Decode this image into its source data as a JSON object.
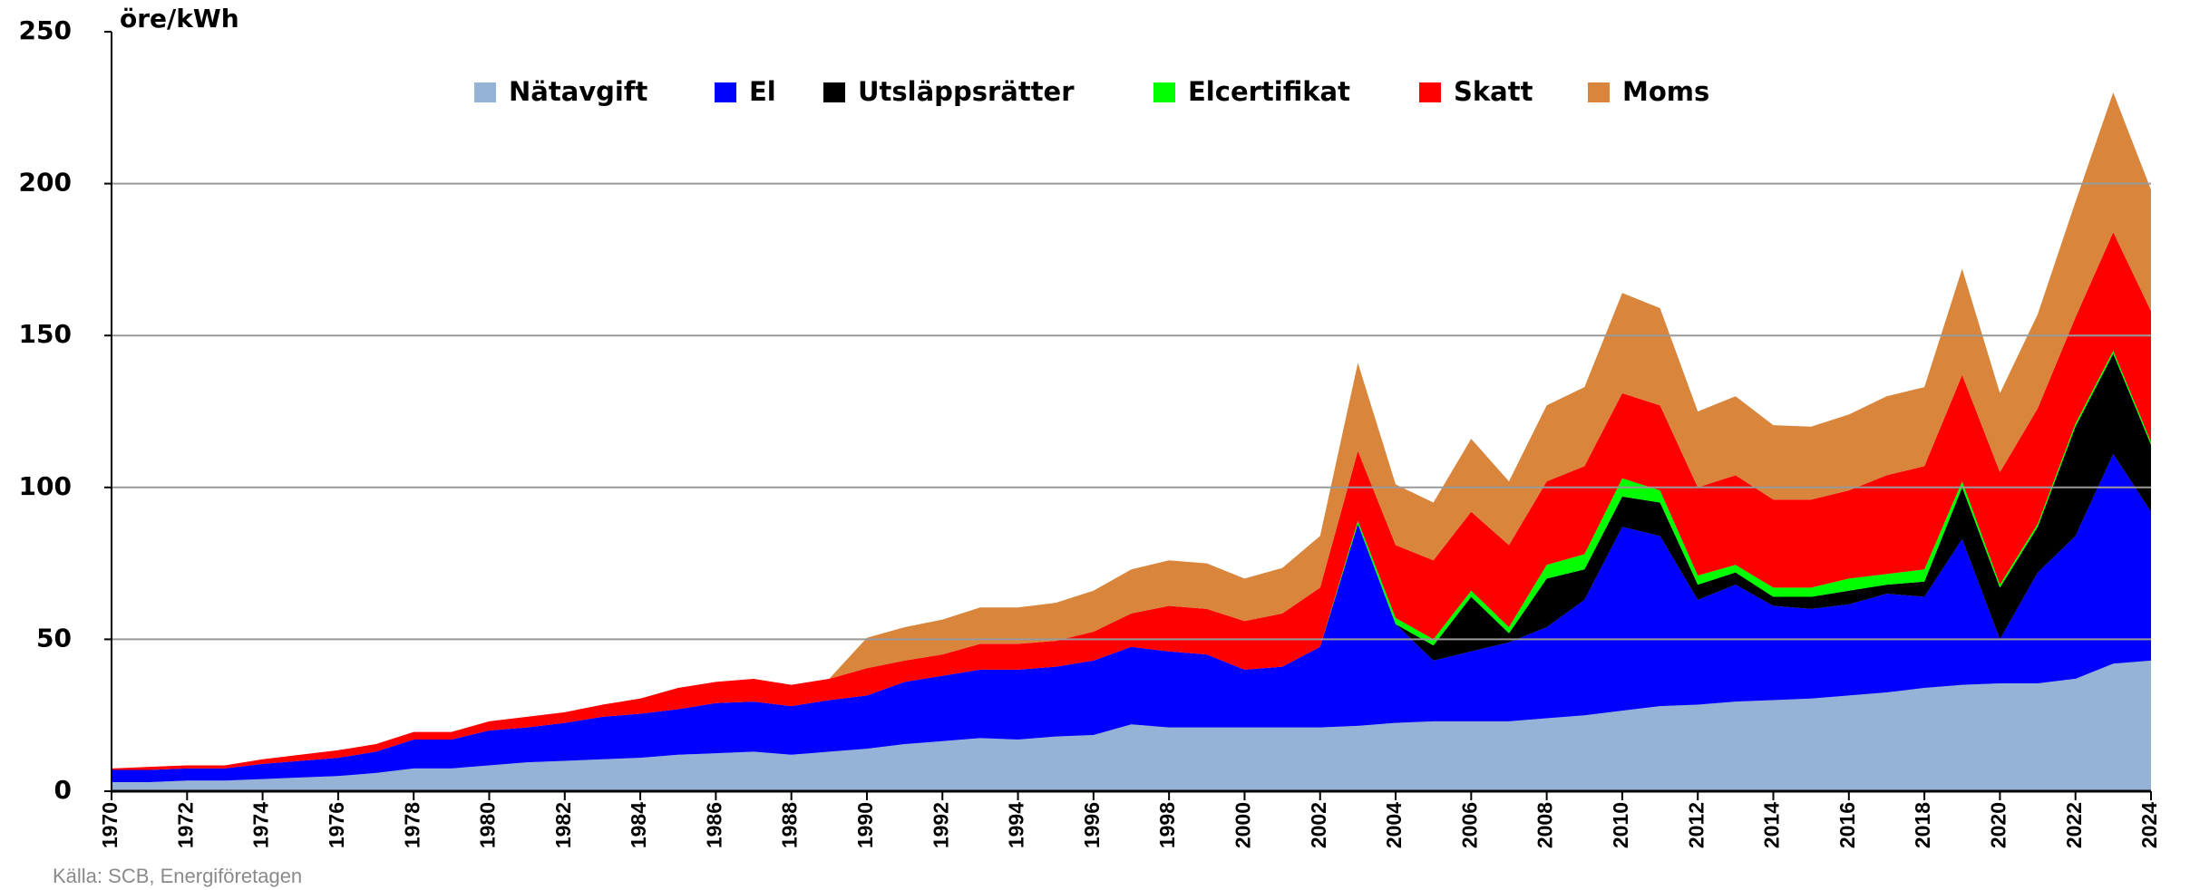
{
  "chart_data": {
    "type": "stacked_area",
    "y_label": "öre/kWh",
    "source": "Källa: SCB, Energiföretagen",
    "x": [
      1970,
      1971,
      1972,
      1973,
      1974,
      1975,
      1976,
      1977,
      1978,
      1979,
      1980,
      1981,
      1982,
      1983,
      1984,
      1985,
      1986,
      1987,
      1988,
      1989,
      1990,
      1991,
      1992,
      1993,
      1994,
      1995,
      1996,
      1997,
      1998,
      1999,
      2000,
      2001,
      2002,
      2003,
      2004,
      2005,
      2006,
      2007,
      2008,
      2009,
      2010,
      2011,
      2012,
      2013,
      2014,
      2015,
      2016,
      2017,
      2018,
      2019,
      2020,
      2021,
      2022,
      2023,
      2024
    ],
    "xlim": [
      1970,
      2024
    ],
    "xticks": [
      1970,
      1972,
      1974,
      1976,
      1978,
      1980,
      1982,
      1984,
      1986,
      1988,
      1990,
      1992,
      1994,
      1996,
      1998,
      2000,
      2002,
      2004,
      2006,
      2008,
      2010,
      2012,
      2014,
      2016,
      2018,
      2020,
      2022,
      2024
    ],
    "ylim": [
      0,
      250
    ],
    "yticks": [
      0,
      50,
      100,
      150,
      200,
      250
    ],
    "grid": true,
    "legend": "top",
    "series": [
      {
        "name": "Nätavgift",
        "color": "#95b3d7",
        "values": [
          3,
          3,
          3.5,
          3.5,
          4,
          4.5,
          5,
          6,
          7.5,
          7.5,
          8.5,
          9.5,
          10,
          10.5,
          11,
          12,
          12.5,
          13,
          12,
          13,
          14,
          15.5,
          16.5,
          17.5,
          17,
          18,
          18.5,
          22,
          21,
          21,
          21,
          21,
          21,
          21.5,
          22.5,
          23,
          23,
          23,
          24,
          25,
          26.5,
          28,
          28.5,
          29.5,
          30,
          30.5,
          31.5,
          32.5,
          34,
          35,
          35.5,
          35.5,
          37,
          42,
          43
        ]
      },
      {
        "name": "El",
        "color": "#0000ff",
        "values": [
          4,
          4,
          4,
          4,
          5,
          5.5,
          6,
          7,
          9.5,
          9.5,
          11.5,
          11.5,
          12.5,
          14,
          14.5,
          15,
          16.5,
          16.5,
          16,
          17,
          17.5,
          20.5,
          21.5,
          22.5,
          23,
          23,
          24.5,
          25.5,
          25,
          24,
          19,
          20,
          26.5,
          66.5,
          32.5,
          20,
          23,
          26,
          30,
          38,
          60.5,
          56,
          34.5,
          38.5,
          31,
          29.5,
          30,
          32.5,
          30,
          48,
          14.5,
          36.5,
          47,
          69,
          49
        ]
      },
      {
        "name": "Utsläppsrätter",
        "color": "#000000",
        "values": [
          0,
          0,
          0,
          0,
          0,
          0,
          0,
          0,
          0,
          0,
          0,
          0,
          0,
          0,
          0,
          0,
          0,
          0,
          0,
          0,
          0,
          0,
          0,
          0,
          0,
          0,
          0,
          0,
          0,
          0,
          0,
          0,
          0,
          0,
          0,
          5,
          18,
          3,
          16,
          10,
          10,
          11,
          5,
          4,
          3,
          4,
          4.5,
          3,
          5,
          17,
          17,
          15,
          36,
          33,
          22
        ]
      },
      {
        "name": "Elcertifikat",
        "color": "#00ff00",
        "values": [
          0,
          0,
          0,
          0,
          0,
          0,
          0,
          0,
          0,
          0,
          0,
          0,
          0,
          0,
          0,
          0,
          0,
          0,
          0,
          0,
          0,
          0,
          0,
          0,
          0,
          0,
          0,
          0,
          0,
          0,
          0,
          0,
          0,
          1,
          2,
          2,
          2,
          2,
          4.5,
          5,
          6,
          4,
          3,
          2.5,
          3,
          3,
          4,
          3.5,
          4,
          2,
          1,
          1,
          1,
          1,
          1
        ]
      },
      {
        "name": "Skatt",
        "color": "#ff0000",
        "values": [
          0.5,
          1,
          1,
          1,
          1.5,
          2,
          2.5,
          2.5,
          2.5,
          2.5,
          3,
          3.5,
          3.5,
          4,
          5,
          7,
          7,
          7.5,
          7,
          7,
          9,
          7,
          7,
          8.5,
          8.5,
          8.5,
          9.5,
          11,
          15,
          15,
          16,
          17.5,
          19.5,
          23,
          24,
          26,
          26,
          27,
          27.5,
          29,
          28,
          28,
          29,
          29.5,
          29,
          29,
          29,
          32.5,
          34,
          35,
          37,
          38,
          35,
          39,
          43
        ]
      },
      {
        "name": "Moms",
        "color": "#d9853b",
        "values": [
          0,
          0,
          0,
          0,
          0,
          0,
          0,
          0,
          0,
          0,
          0,
          0,
          0,
          0,
          0,
          0,
          0,
          0,
          0,
          0,
          10,
          11,
          11.5,
          12,
          12,
          12.5,
          13.5,
          14.5,
          15,
          15,
          14,
          15,
          17,
          29,
          20,
          19,
          24,
          21,
          25,
          26,
          33,
          32,
          25,
          26,
          24.5,
          24,
          25,
          26,
          26,
          35,
          26,
          31,
          38,
          46,
          40
        ]
      }
    ]
  }
}
